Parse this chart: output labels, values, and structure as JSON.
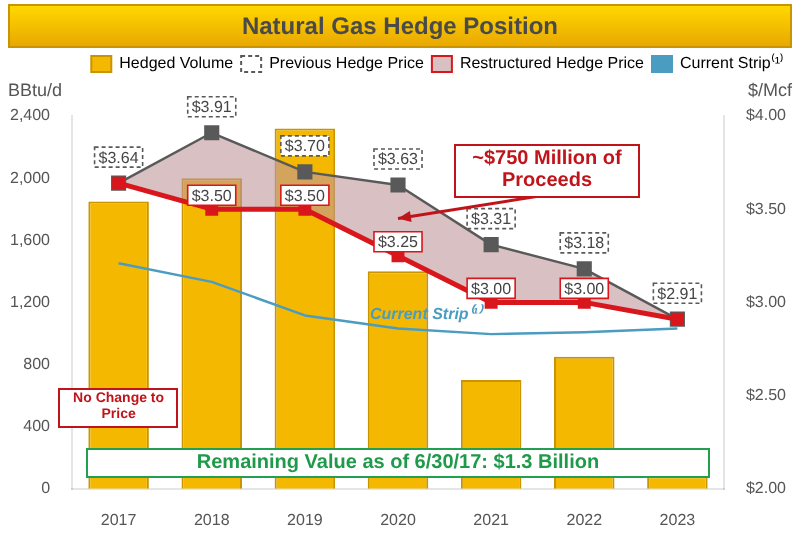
{
  "chart_data": {
    "type": "bar",
    "title": "Natural Gas Hedge Position",
    "ylabel": "BBtu/d",
    "y2label": "$/Mcf",
    "categories": [
      "2017",
      "2018",
      "2019",
      "2020",
      "2021",
      "2022",
      "2023"
    ],
    "series": [
      {
        "name": "Hedged Volume",
        "color": "#f5b800",
        "values": [
          1850,
          2000,
          2320,
          1400,
          700,
          850,
          80
        ]
      },
      {
        "name": "Previous Hedge Price",
        "type": "line",
        "axis": "y2",
        "color": "#595959",
        "marker": "square",
        "line_style": "solid",
        "values": [
          3.64,
          3.91,
          3.7,
          3.63,
          3.31,
          3.18,
          2.91
        ],
        "value_labels": [
          "$3.64",
          "$3.91",
          "$3.70",
          "$3.63",
          "$3.31",
          "$3.18",
          "$2.91"
        ]
      },
      {
        "name": "Restructured Hedge Price",
        "type": "line",
        "axis": "y2",
        "color": "#d9161c",
        "marker": "square",
        "line_style": "solid",
        "values": [
          3.64,
          3.5,
          3.5,
          3.25,
          3.0,
          3.0,
          2.91
        ],
        "value_labels": [
          null,
          "$3.50",
          "$3.50",
          "$3.25",
          "$3.00",
          "$3.00",
          null
        ]
      },
      {
        "name": "Current Strip⁽¹⁾",
        "type": "line",
        "axis": "y2",
        "color": "#4a9cc0",
        "marker": "none",
        "line_style": "solid",
        "values": [
          3.21,
          3.11,
          2.93,
          2.86,
          2.83,
          2.84,
          2.86
        ]
      }
    ],
    "ylim": [
      0,
      2400
    ],
    "yticks": [
      {
        "value": 0,
        "label": "0"
      },
      {
        "value": 400,
        "label": "400"
      },
      {
        "value": 800,
        "label": "800"
      },
      {
        "value": 1200,
        "label": "1,200"
      },
      {
        "value": 1600,
        "label": "1,600"
      },
      {
        "value": 2000,
        "label": "2,000"
      },
      {
        "value": 2400,
        "label": "2,400"
      }
    ],
    "y2lim": [
      2,
      4
    ],
    "y2ticks": [
      {
        "value": 2,
        "label": "$2.00"
      },
      {
        "value": 2.5,
        "label": "$2.50"
      },
      {
        "value": 3,
        "label": "$3.00"
      },
      {
        "value": 3.5,
        "label": "$3.50"
      },
      {
        "value": 4,
        "label": "$4.00"
      }
    ],
    "grid": false,
    "legend": "top right",
    "annotations": [
      "~$750 Million of Proceeds",
      "No Change to Price",
      "Remaining Value as of 6/30/17: $1.3 Billion"
    ]
  }
}
